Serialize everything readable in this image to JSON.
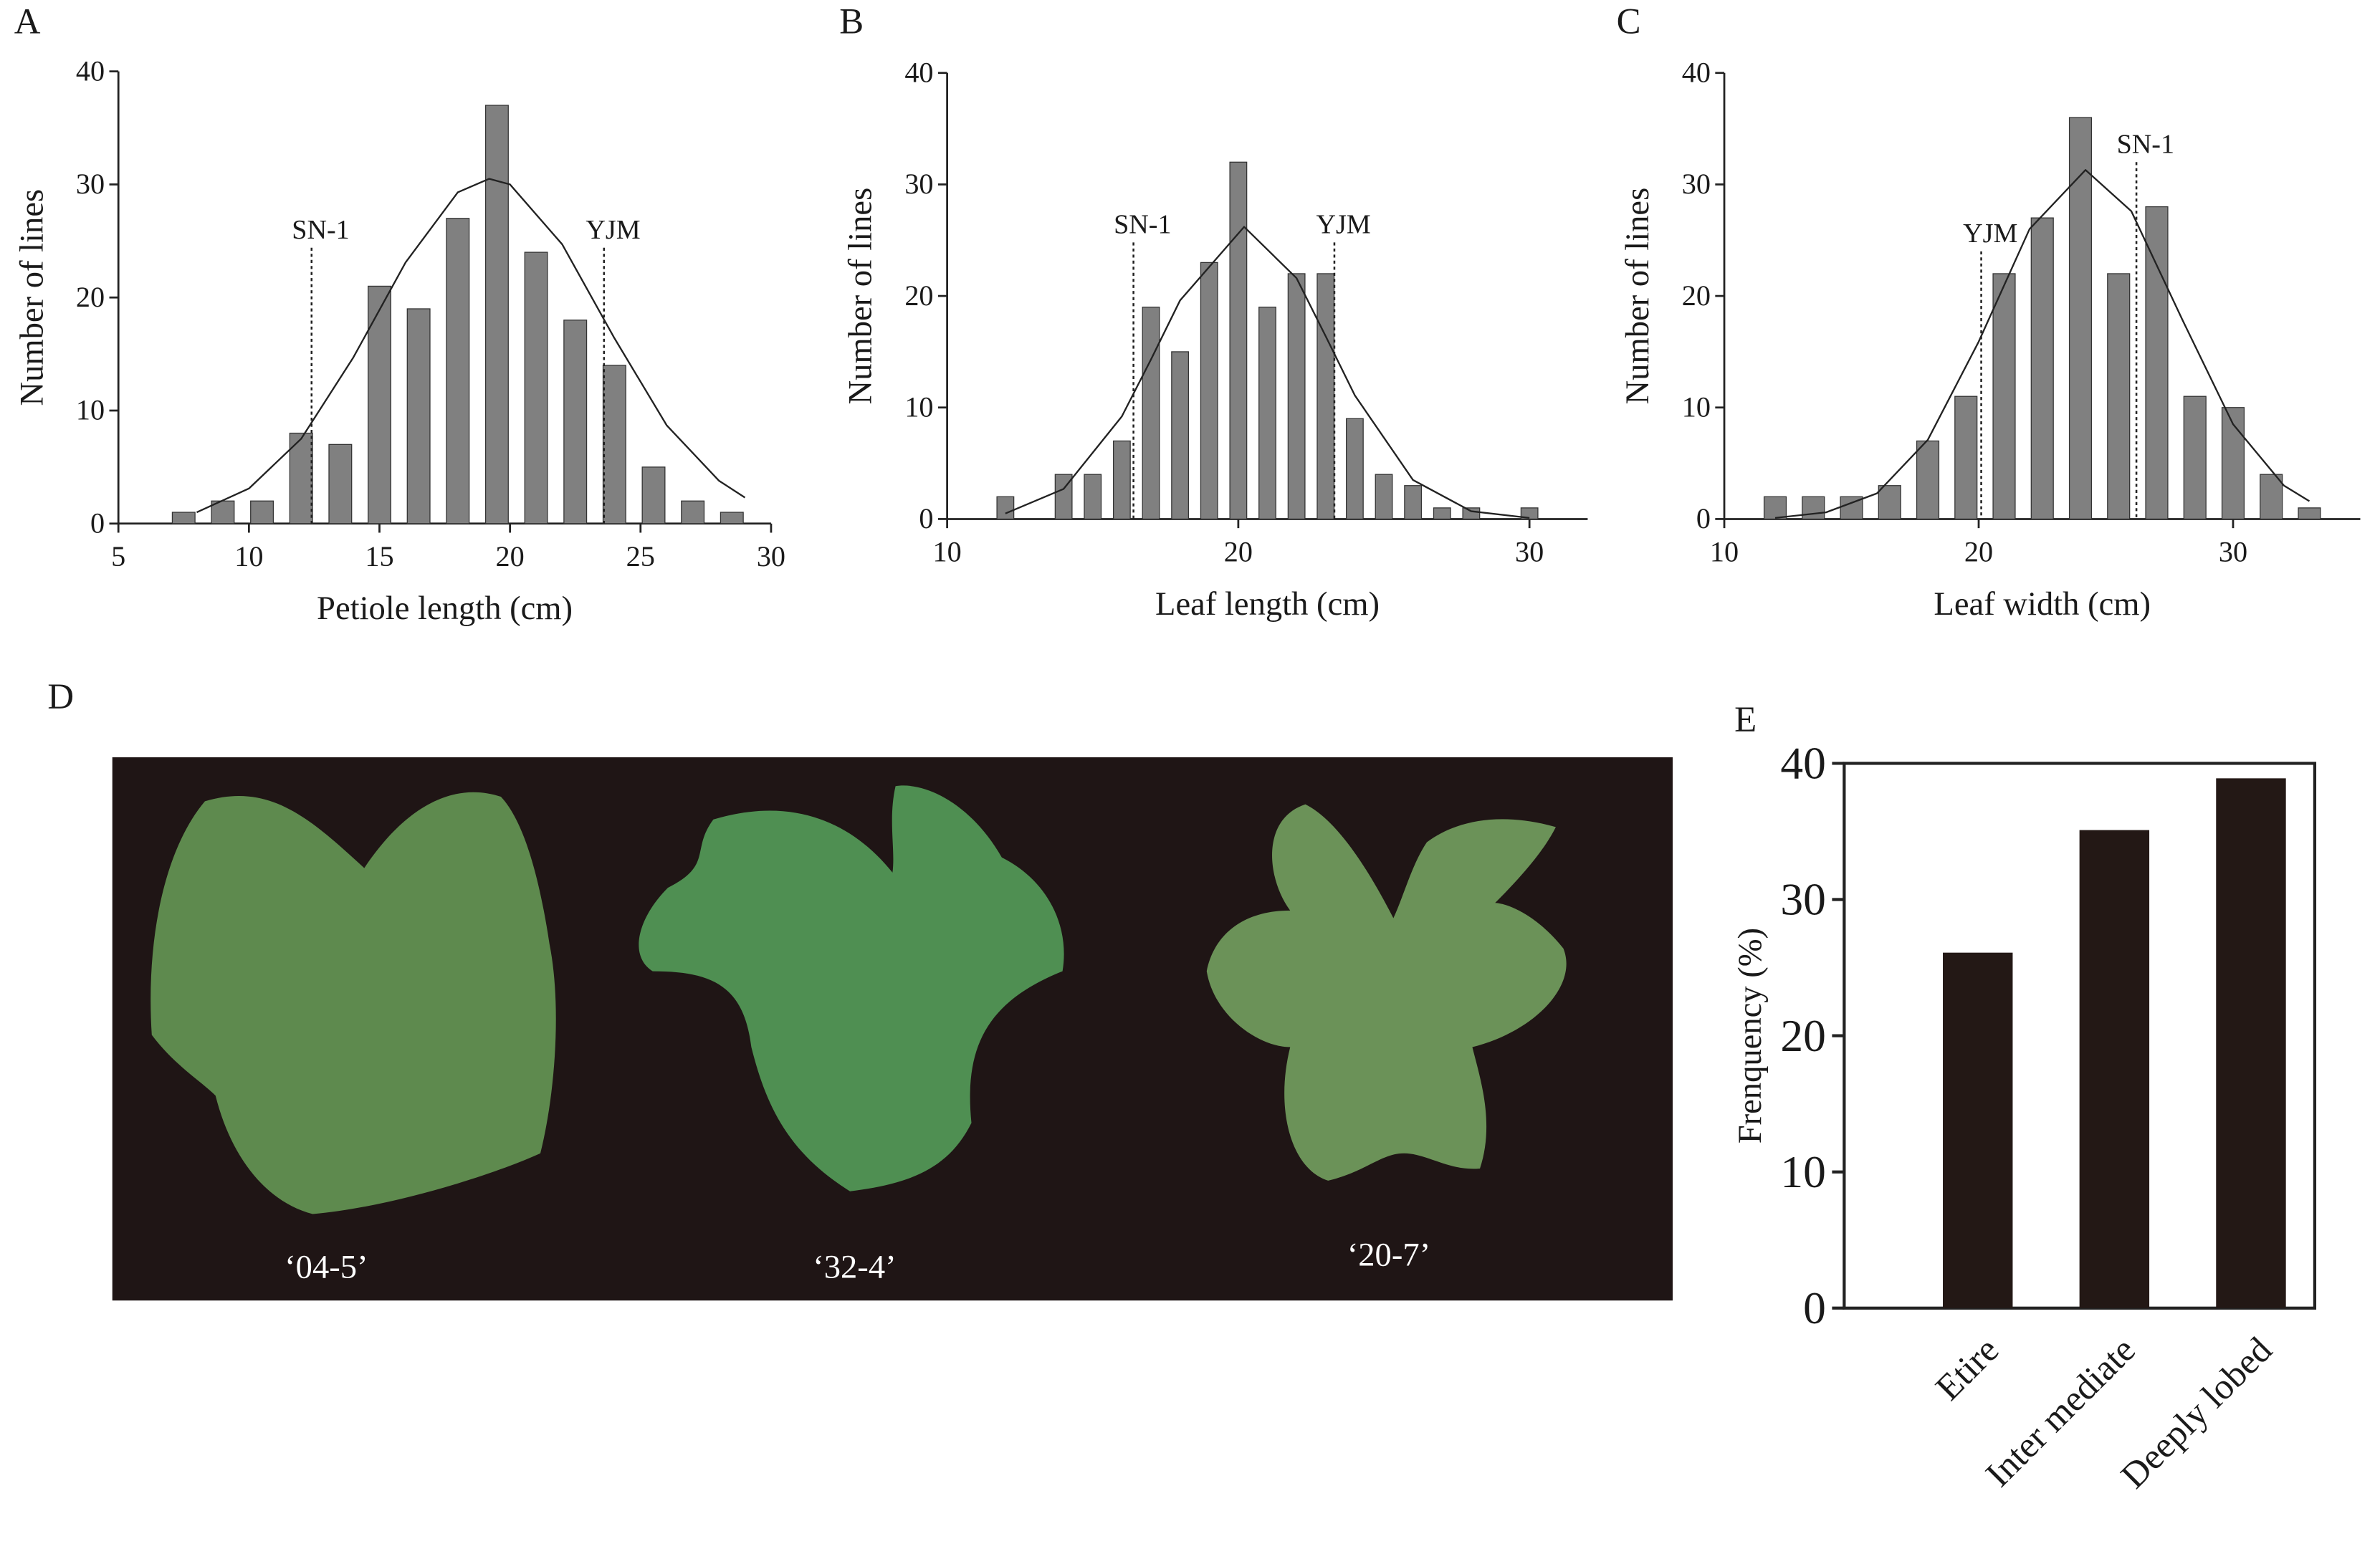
{
  "chart_data": [
    {
      "panel": "A",
      "type": "bar",
      "xlabel": "Petiole length (cm)",
      "ylabel": "Number of lines",
      "x": [
        7.5,
        9,
        10.5,
        12,
        13.5,
        15,
        16.5,
        18,
        19.5,
        21,
        22.5,
        24,
        25.5,
        27,
        28.5
      ],
      "values": [
        1,
        2,
        2,
        8,
        7,
        21,
        19,
        27,
        37,
        24,
        18,
        14,
        5,
        2,
        1
      ],
      "color": "#808080",
      "fit": {
        "x": [
          8,
          10,
          12,
          14,
          16,
          18,
          19.2,
          20,
          22,
          24,
          26,
          28,
          29
        ],
        "y": [
          1.0,
          3.1,
          7.5,
          14.7,
          23.1,
          29.3,
          30.5,
          30.0,
          24.7,
          16.4,
          8.7,
          3.8,
          2.3
        ]
      },
      "annotations": [
        {
          "text": "SN-1",
          "x": 12.4,
          "y": 24.4
        },
        {
          "text": "YJM",
          "x": 23.6,
          "y": 24.4
        }
      ],
      "xlim": [
        5,
        30
      ],
      "xticks": [
        5,
        10,
        15,
        20,
        25,
        30
      ],
      "ylim": [
        0,
        40
      ],
      "yticks": [
        0,
        10,
        20,
        30,
        40
      ]
    },
    {
      "panel": "B",
      "type": "bar",
      "xlabel": "Leaf length (cm)",
      "ylabel": "Number of lines",
      "x": [
        12,
        14,
        15,
        16,
        17,
        18,
        19,
        20,
        21,
        22,
        23,
        24,
        25,
        26,
        27,
        28,
        30
      ],
      "values": [
        2,
        4,
        4,
        7,
        19,
        15,
        23,
        32,
        19,
        22,
        22,
        9,
        4,
        3,
        1,
        1,
        1
      ],
      "color": "#808080",
      "fit": {
        "x": [
          12,
          14,
          16,
          17,
          18,
          20.2,
          22,
          23,
          24,
          26,
          28,
          30
        ],
        "y": [
          0.5,
          2.7,
          9.2,
          14.3,
          19.6,
          26.2,
          21.6,
          16.4,
          11.1,
          3.5,
          0.7,
          0.1
        ]
      },
      "annotations": [
        {
          "text": "SN-1",
          "x": 16.4,
          "y": 24.8
        },
        {
          "text": "YJM",
          "x": 23.3,
          "y": 24.8
        }
      ],
      "xlim": [
        10,
        32
      ],
      "xticks": [
        10,
        20,
        30
      ],
      "ylim": [
        0,
        40
      ],
      "yticks": [
        0,
        10,
        20,
        30,
        40
      ]
    },
    {
      "panel": "C",
      "type": "bar",
      "xlabel": "Leaf width (cm)",
      "ylabel": "Number of lines",
      "x": [
        12,
        13.5,
        15,
        16.5,
        18,
        19.5,
        21,
        22.5,
        24,
        25.5,
        27,
        28.5,
        30,
        31.5,
        33
      ],
      "values": [
        2,
        2,
        2,
        3,
        7,
        11,
        22,
        27,
        36,
        22,
        28,
        11,
        10,
        4,
        1
      ],
      "color": "#808080",
      "fit": {
        "x": [
          12,
          14,
          16,
          18,
          20,
          22,
          24.2,
          26,
          28,
          30,
          32,
          33
        ],
        "y": [
          0.1,
          0.6,
          2.3,
          7.1,
          15.9,
          26.0,
          31.3,
          27.6,
          17.9,
          8.5,
          3.0,
          1.6
        ]
      },
      "annotations": [
        {
          "text": "YJM",
          "x": 20.1,
          "y": 24
        },
        {
          "text": "SN-1",
          "x": 26.2,
          "y": 32
        }
      ],
      "xlim": [
        10,
        35
      ],
      "xticks": [
        10,
        20,
        30
      ],
      "ylim": [
        0,
        40
      ],
      "yticks": [
        0,
        10,
        20,
        30,
        40
      ]
    },
    {
      "panel": "D",
      "type": "image",
      "labels": [
        "‘04-5’",
        "‘32-4’",
        "‘20-7’"
      ]
    },
    {
      "panel": "E",
      "type": "column",
      "ylabel": "Frenquency (%)",
      "categories": [
        "Etire",
        "Inter mediate",
        "Deeply lobed"
      ],
      "values": [
        26.1,
        35.1,
        38.9
      ],
      "color": "#231815",
      "ylim": [
        0,
        40
      ],
      "yticks": [
        0,
        10,
        20,
        30,
        40
      ]
    }
  ]
}
